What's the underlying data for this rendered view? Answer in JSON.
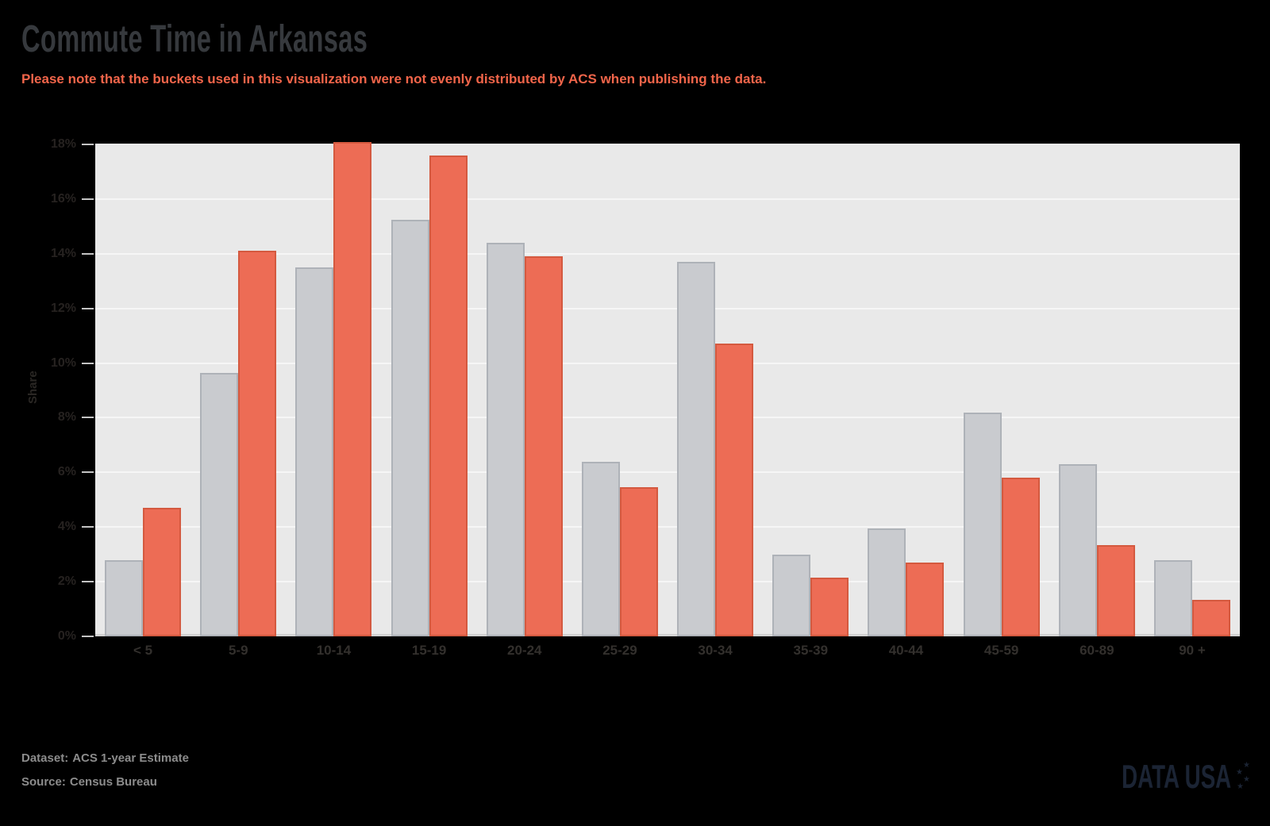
{
  "header": {
    "title": "Commute Time in Arkansas",
    "subtitle": "Please note that the buckets used in this visualization were not evenly distributed by ACS when publishing the data."
  },
  "chart_data": {
    "type": "bar",
    "title": "Commute Time in Arkansas",
    "categories": [
      "< 5",
      "5-9",
      "10-14",
      "15-19",
      "20-24",
      "25-29",
      "30-34",
      "35-39",
      "40-44",
      "45-59",
      "60-89",
      "90 +"
    ],
    "series": [
      {
        "name": "gray",
        "color": "#c9cbcf",
        "border_color": "#aeb2b8",
        "values": [
          2.8,
          9.65,
          13.5,
          15.25,
          14.4,
          6.4,
          13.7,
          3.0,
          3.95,
          8.2,
          6.3,
          2.8
        ]
      },
      {
        "name": "orange",
        "color": "#ed6c55",
        "border_color": "#d4593f",
        "values": [
          4.7,
          14.1,
          18.1,
          17.6,
          13.9,
          5.45,
          10.7,
          2.15,
          2.7,
          5.8,
          3.35,
          1.35
        ]
      }
    ],
    "xlabel": "",
    "ylabel": "Share",
    "ylim": [
      0,
      18
    ],
    "ytick_step": 2,
    "ytick_suffix": "%",
    "grid": true,
    "legend_position": "none",
    "plot_bg": "#e9e9e9",
    "gridline_color": "#f6f6f6",
    "axis_line_color": "#d2d2d2"
  },
  "footer": {
    "dataset_label": "Dataset:",
    "dataset_value": "ACS 1-year Estimate",
    "source_label": "Source:",
    "source_value": "Census Bureau"
  },
  "logo": {
    "text": "DATA USA",
    "star_icon": "★",
    "color": "#1b2434"
  },
  "colors": {
    "background": "#000000",
    "title": "#36393d",
    "subtitle": "#f2654a",
    "footer_text": "#8c8c8c"
  }
}
